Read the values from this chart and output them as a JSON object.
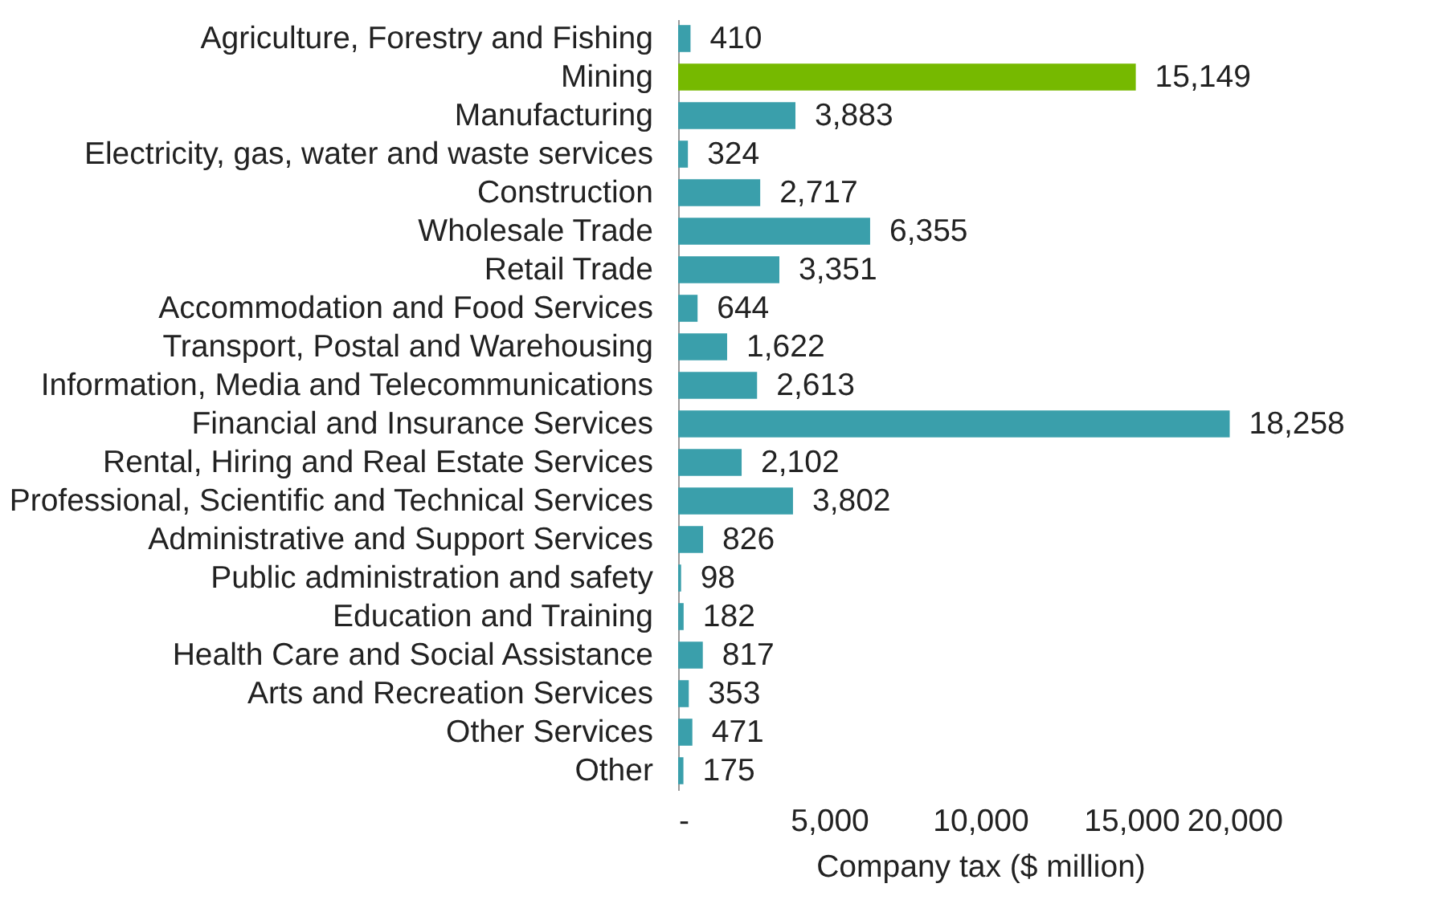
{
  "chart_data": {
    "type": "bar",
    "orientation": "horizontal",
    "xlabel": "Company tax ($ million)",
    "categories": [
      "Agriculture, Forestry and Fishing",
      "Mining",
      "Manufacturing",
      "Electricity, gas, water and waste services",
      "Construction",
      "Wholesale Trade",
      "Retail Trade",
      "Accommodation and Food Services",
      "Transport, Postal and Warehousing",
      "Information, Media and Telecommunications",
      "Financial and Insurance Services",
      "Rental, Hiring and Real Estate Services",
      "Professional, Scientific and Technical Services",
      "Administrative and Support Services",
      "Public administration and safety",
      "Education and Training",
      "Health Care and Social Assistance",
      "Arts and Recreation Services",
      "Other Services",
      "Other"
    ],
    "values": [
      410,
      15149,
      3883,
      324,
      2717,
      6355,
      3351,
      644,
      1622,
      2613,
      18258,
      2102,
      3802,
      826,
      98,
      182,
      817,
      353,
      471,
      175
    ],
    "value_labels": [
      "410",
      "15,149",
      "3,883",
      "324",
      "2,717",
      "6,355",
      "3,351",
      "644",
      "1,622",
      "2,613",
      "18,258",
      "2,102",
      "3,802",
      "826",
      "98",
      "182",
      "817",
      "353",
      "471",
      "175"
    ],
    "colors": [
      "#3a9fab",
      "#76b900",
      "#3a9fab",
      "#3a9fab",
      "#3a9fab",
      "#3a9fab",
      "#3a9fab",
      "#3a9fab",
      "#3a9fab",
      "#3a9fab",
      "#3a9fab",
      "#3a9fab",
      "#3a9fab",
      "#3a9fab",
      "#3a9fab",
      "#3a9fab",
      "#3a9fab",
      "#3a9fab",
      "#3a9fab",
      "#3a9fab"
    ],
    "xlim": [
      0,
      20000
    ],
    "xticks": [
      {
        "value": 0,
        "label": "-"
      },
      {
        "value": 5000,
        "label": "5,000"
      },
      {
        "value": 10000,
        "label": "10,000"
      },
      {
        "value": 15000,
        "label": "15,000"
      },
      {
        "value": 20000,
        "label": "20,000"
      }
    ],
    "grid": false
  }
}
